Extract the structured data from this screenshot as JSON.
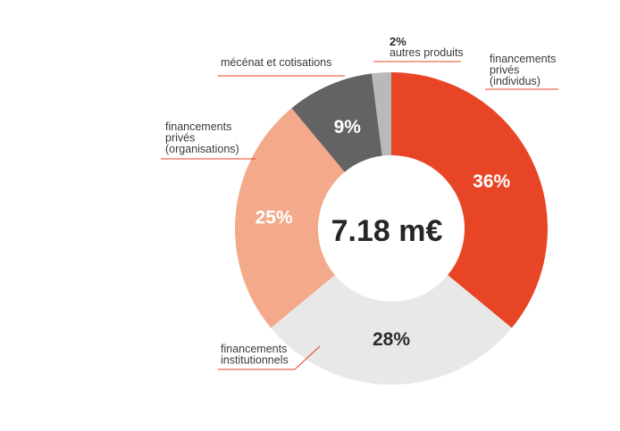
{
  "chart_data": {
    "type": "pie",
    "variant": "donut",
    "total_label": "7.18 m€",
    "slices": [
      {
        "value": 36,
        "label": "36%",
        "name_lines": [
          "financements",
          "privés",
          "(individus)"
        ],
        "color": "#e84526",
        "label_color": "#ffffff"
      },
      {
        "value": 28,
        "label": "28%",
        "name_lines": [
          "financements",
          "institutionnels"
        ],
        "color": "#e8e8e8",
        "label_color": "#2b2b2b"
      },
      {
        "value": 25,
        "label": "25%",
        "name_lines": [
          "financements",
          "privés",
          "(organisations)"
        ],
        "color": "#f3a98a",
        "label_color": "#ffffff"
      },
      {
        "value": 9,
        "label": "9%",
        "name_lines": [
          "mécénat et cotisations"
        ],
        "color": "#636363",
        "label_color": "#ffffff"
      },
      {
        "value": 2,
        "label": "2%",
        "name_lines": [
          "autres produits"
        ],
        "color": "#b9b9b9",
        "label_color": "#2b2b2b",
        "label_outside": true
      }
    ],
    "leader_color": "#e84526"
  }
}
